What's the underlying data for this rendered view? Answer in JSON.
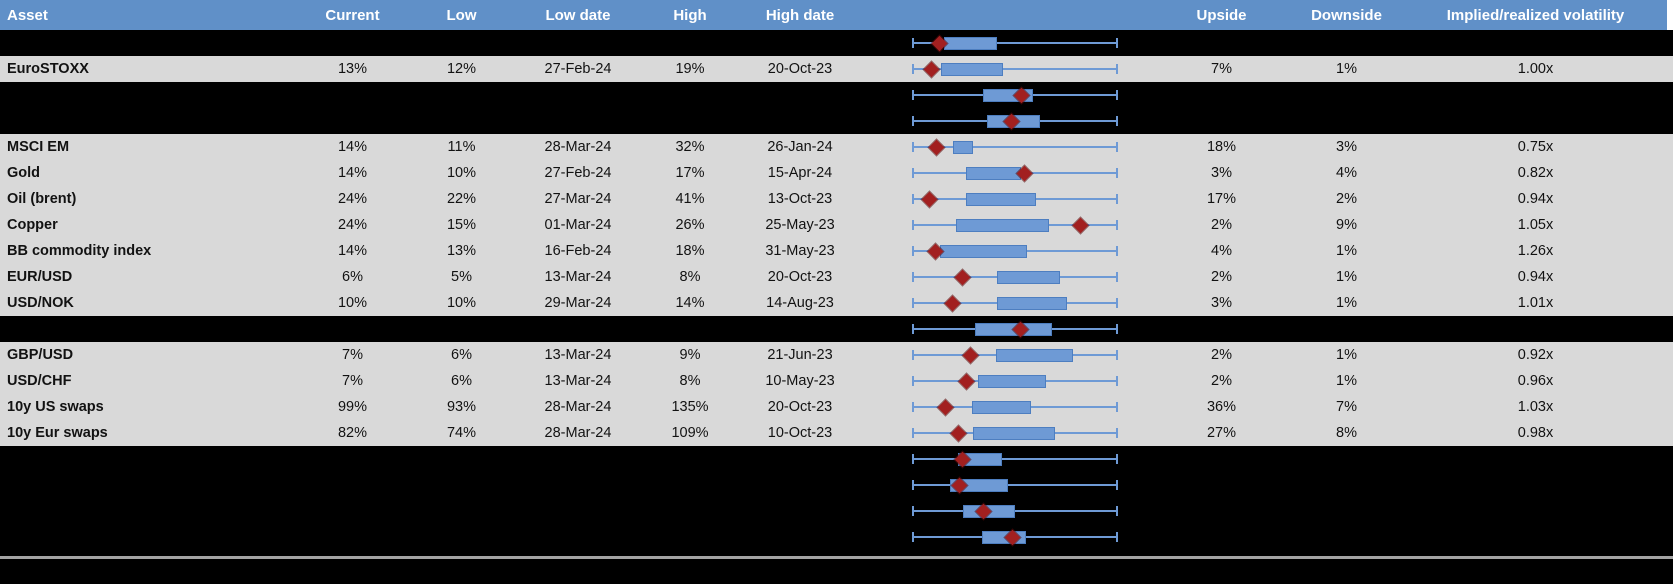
{
  "colors": {
    "header_blue": "#6090c8",
    "row_gray": "#d9d9d9",
    "hidden_row_black": "#000000",
    "whisker_blue": "#6e9ad5",
    "box_fill_blue": "#6e9ad5",
    "box_border_blue": "#4d7ec0",
    "diamond_red": "#a22020",
    "divider_gray": "#a3a3a3",
    "header_text": "#ffffff",
    "body_text": "#121212"
  },
  "header": {
    "columns": [
      {
        "key": "asset",
        "label": "Asset"
      },
      {
        "key": "current",
        "label": "Current"
      },
      {
        "key": "low",
        "label": "Low"
      },
      {
        "key": "low_date",
        "label": "Low date"
      },
      {
        "key": "high",
        "label": "High"
      },
      {
        "key": "high_date",
        "label": "High date"
      },
      {
        "key": "chart",
        "label": ""
      },
      {
        "key": "upside",
        "label": "Upside"
      },
      {
        "key": "downside",
        "label": "Downside"
      },
      {
        "key": "ivrv",
        "label": "Implied/realized volatility"
      }
    ]
  },
  "table": {
    "rows": [
      {
        "type": "spacer",
        "cells": {},
        "plot": {
          "box": [
            0.152,
            0.412
          ],
          "diamond": 0.132
        }
      },
      {
        "type": "data",
        "cells": {
          "asset": "EuroSTOXX",
          "current": "13%",
          "low": "12%",
          "low_date": "27-Feb-24",
          "high": "19%",
          "high_date": "20-Oct-23",
          "upside": "7%",
          "downside": "1%",
          "ivrv": "1.00x"
        },
        "plot": {
          "box": [
            0.137,
            0.441
          ],
          "diamond": 0.093
        }
      },
      {
        "type": "spacer",
        "cells": {},
        "plot": {
          "box": [
            0.343,
            0.588
          ],
          "diamond": 0.534
        }
      },
      {
        "type": "spacer",
        "cells": {},
        "plot": {
          "box": [
            0.363,
            0.623
          ],
          "diamond": 0.485
        }
      },
      {
        "type": "data",
        "cells": {
          "asset": "MSCI EM",
          "current": "14%",
          "low": "11%",
          "low_date": "28-Mar-24",
          "high": "32%",
          "high_date": "26-Jan-24",
          "upside": "18%",
          "downside": "3%",
          "ivrv": "0.75x"
        },
        "plot": {
          "box": [
            0.198,
            0.295
          ],
          "diamond": 0.117
        }
      },
      {
        "type": "data",
        "cells": {
          "asset": "Gold",
          "current": "14%",
          "low": "10%",
          "low_date": "27-Feb-24",
          "high": "17%",
          "high_date": "15-Apr-24",
          "upside": "3%",
          "downside": "4%",
          "ivrv": "0.82x"
        },
        "plot": {
          "box": [
            0.261,
            0.528
          ],
          "diamond": 0.549
        }
      },
      {
        "type": "data",
        "cells": {
          "asset": "Oil (brent)",
          "current": "24%",
          "low": "22%",
          "low_date": "27-Mar-24",
          "high": "41%",
          "high_date": "13-Oct-23",
          "upside": "17%",
          "downside": "2%",
          "ivrv": "0.94x"
        },
        "plot": {
          "box": [
            0.261,
            0.605
          ],
          "diamond": 0.083
        }
      },
      {
        "type": "data",
        "cells": {
          "asset": "Copper",
          "current": "24%",
          "low": "15%",
          "low_date": "01-Mar-24",
          "high": "26%",
          "high_date": "25-May-23",
          "upside": "2%",
          "downside": "9%",
          "ivrv": "1.05x"
        },
        "plot": {
          "box": [
            0.211,
            0.668
          ],
          "diamond": 0.821
        }
      },
      {
        "type": "data",
        "cells": {
          "asset": "BB commodity index",
          "current": "14%",
          "low": "13%",
          "low_date": "16-Feb-24",
          "high": "18%",
          "high_date": "31-May-23",
          "upside": "4%",
          "downside": "1%",
          "ivrv": "1.26x"
        },
        "plot": {
          "box": [
            0.134,
            0.559
          ],
          "diamond": 0.109
        }
      },
      {
        "type": "data",
        "cells": {
          "asset": "EUR/USD",
          "current": "6%",
          "low": "5%",
          "low_date": "13-Mar-24",
          "high": "8%",
          "high_date": "20-Oct-23",
          "upside": "2%",
          "downside": "1%",
          "ivrv": "0.94x"
        },
        "plot": {
          "box": [
            0.414,
            0.719
          ],
          "diamond": 0.241
        }
      },
      {
        "type": "data",
        "cells": {
          "asset": "USD/NOK",
          "current": "10%",
          "low": "10%",
          "low_date": "29-Mar-24",
          "high": "14%",
          "high_date": "14-Aug-23",
          "upside": "3%",
          "downside": "1%",
          "ivrv": "1.01x"
        },
        "plot": {
          "box": [
            0.414,
            0.757
          ],
          "diamond": 0.193
        }
      },
      {
        "type": "spacer",
        "cells": {},
        "plot": {
          "box": [
            0.305,
            0.681
          ],
          "diamond": 0.528
        }
      },
      {
        "type": "data",
        "cells": {
          "asset": "GBP/USD",
          "current": "7%",
          "low": "6%",
          "low_date": "13-Mar-24",
          "high": "9%",
          "high_date": "21-Jun-23",
          "upside": "2%",
          "downside": "1%",
          "ivrv": "0.92x"
        },
        "plot": {
          "box": [
            0.406,
            0.782
          ],
          "diamond": 0.282
        }
      },
      {
        "type": "data",
        "cells": {
          "asset": "USD/CHF",
          "current": "7%",
          "low": "6%",
          "low_date": "13-Mar-24",
          "high": "8%",
          "high_date": "10-May-23",
          "upside": "2%",
          "downside": "1%",
          "ivrv": "0.96x"
        },
        "plot": {
          "box": [
            0.32,
            0.65
          ],
          "diamond": 0.261
        }
      },
      {
        "type": "data",
        "cells": {
          "asset": "10y US swaps",
          "current": "99%",
          "low": "93%",
          "low_date": "28-Mar-24",
          "high": "135%",
          "high_date": "20-Oct-23",
          "upside": "36%",
          "downside": "7%",
          "ivrv": "1.03x"
        },
        "plot": {
          "box": [
            0.287,
            0.579
          ],
          "diamond": 0.16
        }
      },
      {
        "type": "data",
        "cells": {
          "asset": "10y Eur swaps",
          "current": "82%",
          "low": "74%",
          "low_date": "28-Mar-24",
          "high": "109%",
          "high_date": "10-Oct-23",
          "upside": "27%",
          "downside": "8%",
          "ivrv": "0.98x"
        },
        "plot": {
          "box": [
            0.295,
            0.694
          ],
          "diamond": 0.223
        }
      },
      {
        "type": "spacer",
        "cells": {},
        "plot": {
          "box": [
            0.222,
            0.435
          ],
          "diamond": 0.244
        }
      },
      {
        "type": "spacer",
        "cells": {},
        "plot": {
          "box": [
            0.181,
            0.467
          ],
          "diamond": 0.227
        }
      },
      {
        "type": "spacer",
        "cells": {},
        "plot": {
          "box": [
            0.244,
            0.5
          ],
          "diamond": 0.345
        }
      },
      {
        "type": "spacer",
        "cells": {},
        "plot": {
          "box": [
            0.34,
            0.552
          ],
          "diamond": 0.489
        }
      }
    ]
  },
  "chart_data": {
    "type": "boxplot",
    "orientation": "horizontal",
    "note": "Each row shows a min-max whisker spanning the full normalized range 0-1, an interquartile-style box [box_low, box_high] and a red diamond marking the current value, all normalized between the row's historical low (0) and high (1).",
    "series": [
      {
        "name": "(hidden row)",
        "box": [
          0.152,
          0.412
        ],
        "diamond": 0.132,
        "whisker": [
          0,
          1
        ]
      },
      {
        "name": "EuroSTOXX",
        "box": [
          0.137,
          0.441
        ],
        "diamond": 0.093,
        "whisker": [
          0,
          1
        ]
      },
      {
        "name": "(hidden row)",
        "box": [
          0.343,
          0.588
        ],
        "diamond": 0.534,
        "whisker": [
          0,
          1
        ]
      },
      {
        "name": "(hidden row)",
        "box": [
          0.363,
          0.623
        ],
        "diamond": 0.485,
        "whisker": [
          0,
          1
        ]
      },
      {
        "name": "MSCI EM",
        "box": [
          0.198,
          0.295
        ],
        "diamond": 0.117,
        "whisker": [
          0,
          1
        ]
      },
      {
        "name": "Gold",
        "box": [
          0.261,
          0.528
        ],
        "diamond": 0.549,
        "whisker": [
          0,
          1
        ]
      },
      {
        "name": "Oil (brent)",
        "box": [
          0.261,
          0.605
        ],
        "diamond": 0.083,
        "whisker": [
          0,
          1
        ]
      },
      {
        "name": "Copper",
        "box": [
          0.211,
          0.668
        ],
        "diamond": 0.821,
        "whisker": [
          0,
          1
        ]
      },
      {
        "name": "BB commodity index",
        "box": [
          0.134,
          0.559
        ],
        "diamond": 0.109,
        "whisker": [
          0,
          1
        ]
      },
      {
        "name": "EUR/USD",
        "box": [
          0.414,
          0.719
        ],
        "diamond": 0.241,
        "whisker": [
          0,
          1
        ]
      },
      {
        "name": "USD/NOK",
        "box": [
          0.414,
          0.757
        ],
        "diamond": 0.193,
        "whisker": [
          0,
          1
        ]
      },
      {
        "name": "(hidden row)",
        "box": [
          0.305,
          0.681
        ],
        "diamond": 0.528,
        "whisker": [
          0,
          1
        ]
      },
      {
        "name": "GBP/USD",
        "box": [
          0.406,
          0.782
        ],
        "diamond": 0.282,
        "whisker": [
          0,
          1
        ]
      },
      {
        "name": "USD/CHF",
        "box": [
          0.32,
          0.65
        ],
        "diamond": 0.261,
        "whisker": [
          0,
          1
        ]
      },
      {
        "name": "10y US swaps",
        "box": [
          0.287,
          0.579
        ],
        "diamond": 0.16,
        "whisker": [
          0,
          1
        ]
      },
      {
        "name": "10y Eur swaps",
        "box": [
          0.295,
          0.694
        ],
        "diamond": 0.223,
        "whisker": [
          0,
          1
        ]
      },
      {
        "name": "(hidden row)",
        "box": [
          0.222,
          0.435
        ],
        "diamond": 0.244,
        "whisker": [
          0,
          1
        ]
      },
      {
        "name": "(hidden row)",
        "box": [
          0.181,
          0.467
        ],
        "diamond": 0.227,
        "whisker": [
          0,
          1
        ]
      },
      {
        "name": "(hidden row)",
        "box": [
          0.244,
          0.5
        ],
        "diamond": 0.345,
        "whisker": [
          0,
          1
        ]
      },
      {
        "name": "(hidden row)",
        "box": [
          0.34,
          0.552
        ],
        "diamond": 0.489,
        "whisker": [
          0,
          1
        ]
      }
    ]
  }
}
